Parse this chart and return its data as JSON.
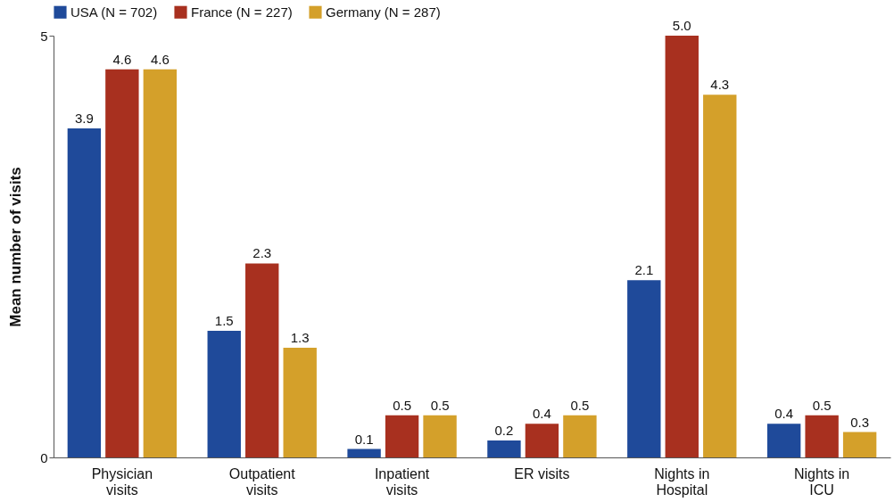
{
  "chart_data": {
    "type": "bar",
    "ylabel": "Mean number of visits",
    "categories": [
      "Physician visits",
      "Outpatient visits",
      "Inpatient visits",
      "ER visits",
      "Nights in Hospital",
      "Nights in ICU"
    ],
    "series": [
      {
        "name": "USA (N = 702)",
        "color": "#1f4a9a",
        "values": [
          3.9,
          1.5,
          0.1,
          0.2,
          2.1,
          0.4
        ],
        "value_labels": [
          "3.9",
          "1.5",
          "0.1",
          "0.2",
          "2.1",
          "0.4"
        ]
      },
      {
        "name": "France (N = 227)",
        "color": "#a8301f",
        "values": [
          4.6,
          2.3,
          0.5,
          0.4,
          5.0,
          0.5
        ],
        "value_labels": [
          "4.6",
          "2.3",
          "0.5",
          "0.4",
          "5.0",
          "0.5"
        ]
      },
      {
        "name": "Germany (N = 287)",
        "color": "#d4a02a",
        "values": [
          4.6,
          1.3,
          0.5,
          0.5,
          4.3,
          0.3
        ],
        "value_labels": [
          "4.6",
          "1.3",
          "0.5",
          "0.5",
          "4.3",
          "0.3"
        ]
      }
    ],
    "ylim": [
      0,
      5
    ],
    "yticks": [
      0,
      5
    ],
    "grid": false,
    "legend": "top"
  }
}
